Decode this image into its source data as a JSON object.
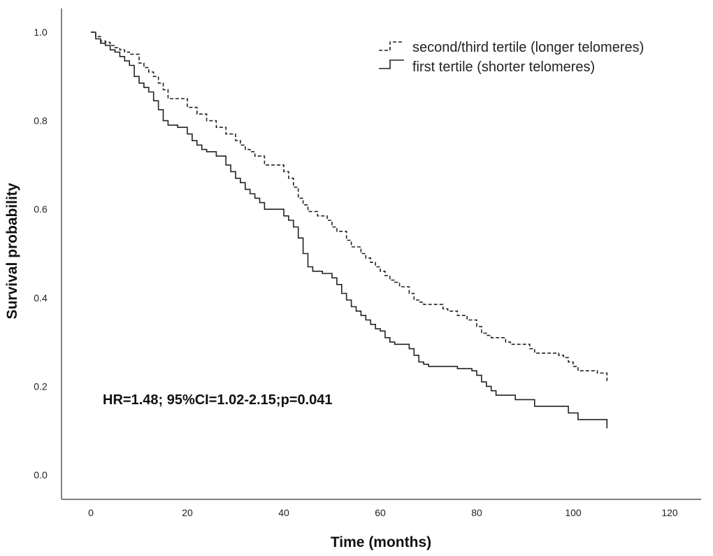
{
  "chart_data": {
    "type": "line",
    "title": "",
    "xlabel": "Time (months)",
    "ylabel": "Survival probability",
    "xlim": [
      0,
      120
    ],
    "ylim": [
      0,
      1.0
    ],
    "xticks": [
      "0",
      "20",
      "40",
      "60",
      "80",
      "100",
      "120"
    ],
    "yticks": [
      "0.0",
      "0.2",
      "0.4",
      "0.6",
      "0.8",
      "1.0"
    ],
    "grid": false,
    "legend_position": "top-right",
    "annotation": "HR=1.48; 95%CI=1.02-2.15;p=0.041",
    "series": [
      {
        "name": "second/third tertile (longer telomeres)",
        "style": "dashed",
        "color": "#222222",
        "x": [
          0,
          1,
          2,
          3,
          4,
          5,
          6,
          7,
          8,
          10,
          11,
          12,
          13,
          14,
          15,
          16,
          20,
          22,
          24,
          26,
          28,
          30,
          31,
          32,
          33,
          34,
          36,
          40,
          41,
          42,
          43,
          44,
          45,
          47,
          49,
          50,
          51,
          53,
          54,
          56,
          57,
          58,
          59,
          60,
          61,
          62,
          63,
          64,
          66,
          67,
          68,
          69,
          70,
          73,
          74,
          76,
          78,
          80,
          81,
          82,
          83,
          84,
          86,
          87,
          91,
          92,
          97,
          98,
          99,
          100,
          101,
          103,
          105,
          106,
          107
        ],
        "y": [
          1.0,
          0.99,
          0.98,
          0.977,
          0.97,
          0.965,
          0.96,
          0.955,
          0.95,
          0.93,
          0.92,
          0.91,
          0.9,
          0.885,
          0.87,
          0.85,
          0.83,
          0.815,
          0.8,
          0.785,
          0.77,
          0.755,
          0.745,
          0.735,
          0.73,
          0.72,
          0.7,
          0.685,
          0.67,
          0.65,
          0.625,
          0.61,
          0.595,
          0.585,
          0.575,
          0.56,
          0.55,
          0.53,
          0.515,
          0.5,
          0.49,
          0.48,
          0.47,
          0.46,
          0.45,
          0.44,
          0.435,
          0.425,
          0.41,
          0.395,
          0.39,
          0.385,
          0.385,
          0.375,
          0.37,
          0.36,
          0.35,
          0.335,
          0.32,
          0.315,
          0.31,
          0.31,
          0.3,
          0.295,
          0.285,
          0.275,
          0.27,
          0.265,
          0.255,
          0.245,
          0.235,
          0.235,
          0.23,
          0.23,
          0.21
        ]
      },
      {
        "name": "first tertile (shorter telomeres)",
        "style": "solid",
        "color": "#222222",
        "x": [
          0,
          1,
          2,
          3,
          4,
          5,
          6,
          7,
          8,
          9,
          10,
          11,
          12,
          13,
          14,
          15,
          16,
          18,
          20,
          21,
          22,
          23,
          24,
          26,
          28,
          29,
          30,
          31,
          32,
          33,
          34,
          35,
          36,
          40,
          41,
          42,
          43,
          44,
          45,
          46,
          48,
          50,
          51,
          52,
          53,
          54,
          55,
          56,
          57,
          58,
          59,
          60,
          61,
          62,
          63,
          66,
          67,
          68,
          69,
          70,
          76,
          79,
          80,
          81,
          82,
          83,
          84,
          88,
          92,
          99,
          101,
          107
        ],
        "y": [
          1.0,
          0.985,
          0.975,
          0.97,
          0.96,
          0.955,
          0.945,
          0.935,
          0.925,
          0.9,
          0.885,
          0.875,
          0.865,
          0.845,
          0.825,
          0.8,
          0.79,
          0.785,
          0.77,
          0.755,
          0.745,
          0.735,
          0.73,
          0.72,
          0.7,
          0.685,
          0.67,
          0.66,
          0.645,
          0.635,
          0.625,
          0.615,
          0.6,
          0.585,
          0.575,
          0.56,
          0.535,
          0.5,
          0.47,
          0.46,
          0.455,
          0.445,
          0.43,
          0.41,
          0.395,
          0.38,
          0.37,
          0.36,
          0.35,
          0.34,
          0.33,
          0.325,
          0.31,
          0.3,
          0.295,
          0.285,
          0.27,
          0.255,
          0.25,
          0.245,
          0.24,
          0.235,
          0.225,
          0.21,
          0.2,
          0.19,
          0.18,
          0.17,
          0.155,
          0.14,
          0.125,
          0.105
        ]
      }
    ]
  }
}
